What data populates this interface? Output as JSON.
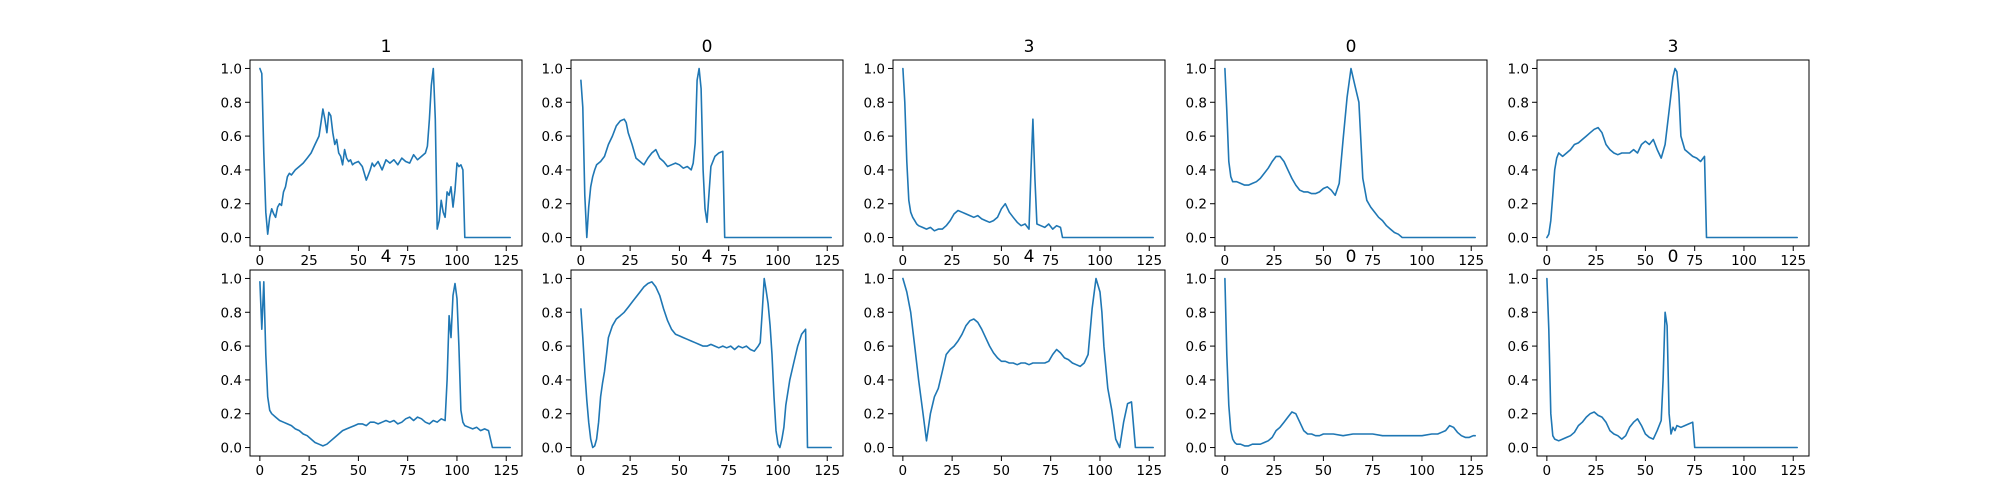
{
  "chart_data": {
    "type": "line",
    "grid": false,
    "line_color": "#1f77b4",
    "xlim": [
      -5,
      133
    ],
    "ylim": [
      -0.05,
      1.05
    ],
    "xticks": [
      0,
      25,
      50,
      75,
      100,
      125
    ],
    "yticks": [
      0.0,
      0.2,
      0.4,
      0.6,
      0.8,
      1.0
    ],
    "xtick_labels": [
      "0",
      "25",
      "50",
      "75",
      "100",
      "125"
    ],
    "ytick_labels": [
      "0.0",
      "0.2",
      "0.4",
      "0.6",
      "0.8",
      "1.0"
    ],
    "panels": [
      {
        "title": "1",
        "x": [
          0,
          1,
          2,
          3,
          4,
          5,
          6,
          7,
          8,
          9,
          10,
          11,
          12,
          13,
          14,
          15,
          16,
          18,
          20,
          22,
          24,
          26,
          28,
          30,
          31,
          32,
          33,
          34,
          35,
          36,
          37,
          38,
          39,
          40,
          41,
          42,
          43,
          44,
          45,
          46,
          47,
          48,
          50,
          52,
          54,
          55,
          56,
          57,
          58,
          60,
          62,
          64,
          66,
          68,
          70,
          72,
          74,
          76,
          78,
          80,
          82,
          84,
          85,
          86,
          87,
          88,
          89,
          90,
          91,
          92,
          93,
          94,
          95,
          96,
          97,
          98,
          99,
          100,
          101,
          102,
          103,
          104,
          105,
          127
        ],
        "y": [
          1.0,
          0.97,
          0.5,
          0.15,
          0.02,
          0.12,
          0.17,
          0.14,
          0.12,
          0.18,
          0.2,
          0.19,
          0.27,
          0.3,
          0.36,
          0.38,
          0.37,
          0.4,
          0.42,
          0.44,
          0.47,
          0.5,
          0.55,
          0.6,
          0.68,
          0.76,
          0.7,
          0.62,
          0.74,
          0.72,
          0.62,
          0.55,
          0.58,
          0.5,
          0.48,
          0.43,
          0.52,
          0.47,
          0.45,
          0.46,
          0.43,
          0.44,
          0.45,
          0.42,
          0.34,
          0.37,
          0.4,
          0.44,
          0.42,
          0.45,
          0.4,
          0.46,
          0.44,
          0.46,
          0.43,
          0.47,
          0.45,
          0.44,
          0.49,
          0.46,
          0.48,
          0.5,
          0.54,
          0.7,
          0.9,
          1.0,
          0.7,
          0.05,
          0.1,
          0.22,
          0.15,
          0.12,
          0.27,
          0.25,
          0.3,
          0.18,
          0.28,
          0.44,
          0.42,
          0.43,
          0.4,
          0.0,
          0.0,
          0.0
        ]
      },
      {
        "title": "0",
        "x": [
          0,
          1,
          2,
          3,
          4,
          5,
          6,
          7,
          8,
          10,
          12,
          14,
          16,
          18,
          20,
          22,
          23,
          24,
          26,
          28,
          30,
          32,
          34,
          36,
          38,
          40,
          42,
          44,
          46,
          48,
          50,
          52,
          54,
          56,
          57,
          58,
          59,
          60,
          61,
          62,
          63,
          64,
          66,
          68,
          70,
          72,
          73,
          127
        ],
        "y": [
          0.93,
          0.77,
          0.25,
          0.0,
          0.18,
          0.3,
          0.36,
          0.4,
          0.43,
          0.45,
          0.48,
          0.55,
          0.6,
          0.66,
          0.69,
          0.7,
          0.68,
          0.62,
          0.55,
          0.47,
          0.45,
          0.43,
          0.47,
          0.5,
          0.52,
          0.47,
          0.45,
          0.42,
          0.43,
          0.44,
          0.43,
          0.41,
          0.42,
          0.4,
          0.44,
          0.56,
          0.93,
          1.0,
          0.88,
          0.4,
          0.17,
          0.09,
          0.42,
          0.48,
          0.5,
          0.51,
          0.0,
          0.0
        ]
      },
      {
        "title": "3",
        "x": [
          0,
          1,
          2,
          3,
          4,
          5,
          6,
          7,
          8,
          10,
          12,
          14,
          16,
          18,
          20,
          22,
          24,
          26,
          28,
          30,
          32,
          34,
          36,
          38,
          40,
          42,
          44,
          46,
          48,
          50,
          52,
          54,
          56,
          58,
          60,
          62,
          64,
          65,
          66,
          67,
          68,
          70,
          72,
          74,
          76,
          78,
          80,
          81,
          127
        ],
        "y": [
          1.0,
          0.8,
          0.45,
          0.22,
          0.15,
          0.12,
          0.1,
          0.08,
          0.07,
          0.06,
          0.05,
          0.06,
          0.04,
          0.05,
          0.05,
          0.07,
          0.1,
          0.14,
          0.16,
          0.15,
          0.14,
          0.13,
          0.12,
          0.13,
          0.11,
          0.1,
          0.09,
          0.1,
          0.12,
          0.17,
          0.2,
          0.15,
          0.12,
          0.09,
          0.07,
          0.08,
          0.05,
          0.4,
          0.7,
          0.35,
          0.08,
          0.07,
          0.06,
          0.08,
          0.05,
          0.07,
          0.06,
          0.0,
          0.0
        ]
      },
      {
        "title": "0",
        "x": [
          0,
          1,
          2,
          3,
          4,
          6,
          8,
          10,
          12,
          14,
          16,
          18,
          20,
          22,
          24,
          26,
          28,
          30,
          32,
          34,
          36,
          38,
          40,
          42,
          44,
          46,
          48,
          50,
          52,
          54,
          56,
          58,
          60,
          62,
          64,
          66,
          68,
          70,
          72,
          74,
          76,
          78,
          80,
          82,
          84,
          86,
          88,
          90,
          127
        ],
        "y": [
          1.0,
          0.75,
          0.45,
          0.36,
          0.33,
          0.33,
          0.32,
          0.31,
          0.31,
          0.32,
          0.33,
          0.35,
          0.38,
          0.41,
          0.45,
          0.48,
          0.48,
          0.45,
          0.4,
          0.35,
          0.31,
          0.28,
          0.27,
          0.27,
          0.26,
          0.26,
          0.27,
          0.29,
          0.3,
          0.28,
          0.25,
          0.32,
          0.58,
          0.83,
          1.0,
          0.9,
          0.8,
          0.35,
          0.22,
          0.18,
          0.15,
          0.12,
          0.1,
          0.07,
          0.05,
          0.03,
          0.02,
          0.0,
          0.0
        ]
      },
      {
        "title": "3",
        "x": [
          0,
          1,
          2,
          3,
          4,
          5,
          6,
          8,
          10,
          12,
          14,
          16,
          18,
          20,
          22,
          24,
          26,
          28,
          30,
          32,
          34,
          36,
          38,
          40,
          42,
          44,
          46,
          48,
          50,
          52,
          54,
          56,
          58,
          60,
          62,
          64,
          65,
          66,
          67,
          68,
          70,
          72,
          74,
          76,
          78,
          80,
          81,
          127
        ],
        "y": [
          0.0,
          0.02,
          0.1,
          0.25,
          0.4,
          0.47,
          0.5,
          0.48,
          0.5,
          0.52,
          0.55,
          0.56,
          0.58,
          0.6,
          0.62,
          0.64,
          0.65,
          0.62,
          0.55,
          0.52,
          0.5,
          0.49,
          0.5,
          0.5,
          0.5,
          0.52,
          0.5,
          0.55,
          0.57,
          0.55,
          0.58,
          0.52,
          0.47,
          0.55,
          0.75,
          0.95,
          1.0,
          0.98,
          0.85,
          0.6,
          0.52,
          0.5,
          0.48,
          0.47,
          0.45,
          0.48,
          0.0,
          0.0
        ]
      },
      {
        "title": "4",
        "x": [
          0,
          1,
          2,
          3,
          4,
          5,
          6,
          8,
          10,
          12,
          14,
          16,
          18,
          20,
          22,
          24,
          26,
          28,
          30,
          32,
          34,
          36,
          38,
          40,
          42,
          44,
          46,
          48,
          50,
          52,
          54,
          56,
          58,
          60,
          62,
          64,
          66,
          68,
          70,
          72,
          74,
          76,
          78,
          80,
          82,
          84,
          86,
          88,
          90,
          92,
          94,
          95,
          96,
          97,
          98,
          99,
          100,
          101,
          102,
          103,
          104,
          106,
          108,
          110,
          112,
          114,
          116,
          118,
          120,
          127
        ],
        "y": [
          0.98,
          0.7,
          0.98,
          0.55,
          0.3,
          0.22,
          0.2,
          0.18,
          0.16,
          0.15,
          0.14,
          0.13,
          0.11,
          0.1,
          0.08,
          0.07,
          0.05,
          0.03,
          0.02,
          0.01,
          0.02,
          0.04,
          0.06,
          0.08,
          0.1,
          0.11,
          0.12,
          0.13,
          0.14,
          0.14,
          0.13,
          0.15,
          0.15,
          0.14,
          0.15,
          0.16,
          0.15,
          0.16,
          0.14,
          0.15,
          0.17,
          0.18,
          0.16,
          0.18,
          0.17,
          0.15,
          0.14,
          0.16,
          0.15,
          0.17,
          0.16,
          0.4,
          0.78,
          0.65,
          0.9,
          0.97,
          0.88,
          0.6,
          0.22,
          0.15,
          0.13,
          0.12,
          0.11,
          0.12,
          0.1,
          0.11,
          0.1,
          0.0,
          0.0,
          0.0
        ]
      },
      {
        "title": "4",
        "x": [
          0,
          1,
          2,
          3,
          4,
          5,
          6,
          7,
          8,
          9,
          10,
          11,
          12,
          13,
          14,
          16,
          18,
          20,
          22,
          24,
          26,
          28,
          30,
          32,
          34,
          36,
          38,
          40,
          42,
          44,
          46,
          48,
          50,
          52,
          54,
          56,
          58,
          60,
          62,
          64,
          66,
          68,
          70,
          72,
          74,
          76,
          78,
          80,
          82,
          84,
          86,
          88,
          90,
          91,
          92,
          93,
          94,
          95,
          96,
          97,
          98,
          99,
          100,
          101,
          102,
          103,
          104,
          106,
          108,
          110,
          112,
          114,
          115,
          116,
          127
        ],
        "y": [
          0.82,
          0.65,
          0.45,
          0.28,
          0.15,
          0.05,
          0.0,
          0.01,
          0.05,
          0.15,
          0.3,
          0.38,
          0.45,
          0.55,
          0.65,
          0.72,
          0.76,
          0.78,
          0.8,
          0.83,
          0.86,
          0.89,
          0.92,
          0.95,
          0.97,
          0.98,
          0.95,
          0.9,
          0.82,
          0.75,
          0.7,
          0.67,
          0.66,
          0.65,
          0.64,
          0.63,
          0.62,
          0.61,
          0.6,
          0.6,
          0.61,
          0.6,
          0.59,
          0.6,
          0.59,
          0.6,
          0.58,
          0.6,
          0.59,
          0.6,
          0.58,
          0.57,
          0.6,
          0.62,
          0.8,
          1.0,
          0.93,
          0.85,
          0.72,
          0.55,
          0.3,
          0.1,
          0.02,
          0.0,
          0.05,
          0.12,
          0.25,
          0.4,
          0.5,
          0.6,
          0.67,
          0.7,
          0.0,
          0.0,
          0.0
        ]
      },
      {
        "title": "4",
        "x": [
          0,
          2,
          4,
          6,
          8,
          10,
          12,
          14,
          16,
          18,
          20,
          22,
          24,
          26,
          28,
          30,
          32,
          34,
          36,
          38,
          40,
          42,
          44,
          46,
          48,
          50,
          52,
          54,
          56,
          58,
          60,
          62,
          64,
          66,
          68,
          70,
          72,
          74,
          76,
          78,
          80,
          82,
          84,
          86,
          88,
          90,
          92,
          94,
          96,
          98,
          100,
          101,
          102,
          104,
          106,
          108,
          110,
          112,
          114,
          116,
          118,
          120,
          122,
          124,
          125,
          127
        ],
        "y": [
          1.0,
          0.92,
          0.8,
          0.6,
          0.4,
          0.22,
          0.04,
          0.2,
          0.3,
          0.35,
          0.45,
          0.55,
          0.58,
          0.6,
          0.63,
          0.67,
          0.72,
          0.75,
          0.76,
          0.74,
          0.7,
          0.65,
          0.6,
          0.56,
          0.53,
          0.51,
          0.51,
          0.5,
          0.5,
          0.49,
          0.5,
          0.5,
          0.49,
          0.5,
          0.5,
          0.5,
          0.5,
          0.51,
          0.55,
          0.58,
          0.56,
          0.53,
          0.52,
          0.5,
          0.49,
          0.48,
          0.5,
          0.55,
          0.82,
          1.0,
          0.92,
          0.8,
          0.6,
          0.35,
          0.22,
          0.05,
          0.0,
          0.15,
          0.26,
          0.27,
          0.0,
          0.0,
          0.0,
          0.0,
          0.0,
          0.0
        ]
      },
      {
        "title": "0",
        "x": [
          0,
          1,
          2,
          3,
          4,
          5,
          6,
          8,
          10,
          12,
          14,
          16,
          18,
          20,
          22,
          24,
          26,
          28,
          30,
          32,
          34,
          36,
          38,
          40,
          42,
          44,
          46,
          48,
          50,
          55,
          60,
          65,
          70,
          75,
          80,
          85,
          90,
          95,
          100,
          105,
          108,
          110,
          112,
          114,
          116,
          118,
          120,
          122,
          124,
          126,
          127
        ],
        "y": [
          1.0,
          0.55,
          0.25,
          0.1,
          0.05,
          0.03,
          0.02,
          0.02,
          0.01,
          0.01,
          0.02,
          0.02,
          0.02,
          0.03,
          0.04,
          0.06,
          0.1,
          0.12,
          0.15,
          0.18,
          0.21,
          0.2,
          0.15,
          0.1,
          0.08,
          0.08,
          0.07,
          0.07,
          0.08,
          0.08,
          0.07,
          0.08,
          0.08,
          0.08,
          0.07,
          0.07,
          0.07,
          0.07,
          0.07,
          0.08,
          0.08,
          0.09,
          0.1,
          0.13,
          0.12,
          0.09,
          0.07,
          0.06,
          0.06,
          0.07,
          0.07
        ]
      },
      {
        "title": "0",
        "x": [
          0,
          1,
          2,
          3,
          4,
          6,
          8,
          10,
          12,
          14,
          16,
          18,
          20,
          22,
          24,
          26,
          28,
          30,
          32,
          34,
          36,
          38,
          40,
          42,
          44,
          46,
          48,
          50,
          52,
          54,
          56,
          58,
          59,
          60,
          61,
          62,
          63,
          64,
          65,
          66,
          68,
          70,
          72,
          74,
          75,
          127
        ],
        "y": [
          1.0,
          0.7,
          0.2,
          0.07,
          0.05,
          0.04,
          0.05,
          0.06,
          0.07,
          0.09,
          0.13,
          0.15,
          0.18,
          0.2,
          0.21,
          0.19,
          0.18,
          0.15,
          0.1,
          0.08,
          0.07,
          0.05,
          0.07,
          0.12,
          0.15,
          0.17,
          0.13,
          0.08,
          0.06,
          0.05,
          0.1,
          0.16,
          0.4,
          0.8,
          0.72,
          0.2,
          0.08,
          0.12,
          0.1,
          0.13,
          0.12,
          0.13,
          0.14,
          0.15,
          0.0,
          0.0
        ]
      }
    ]
  }
}
